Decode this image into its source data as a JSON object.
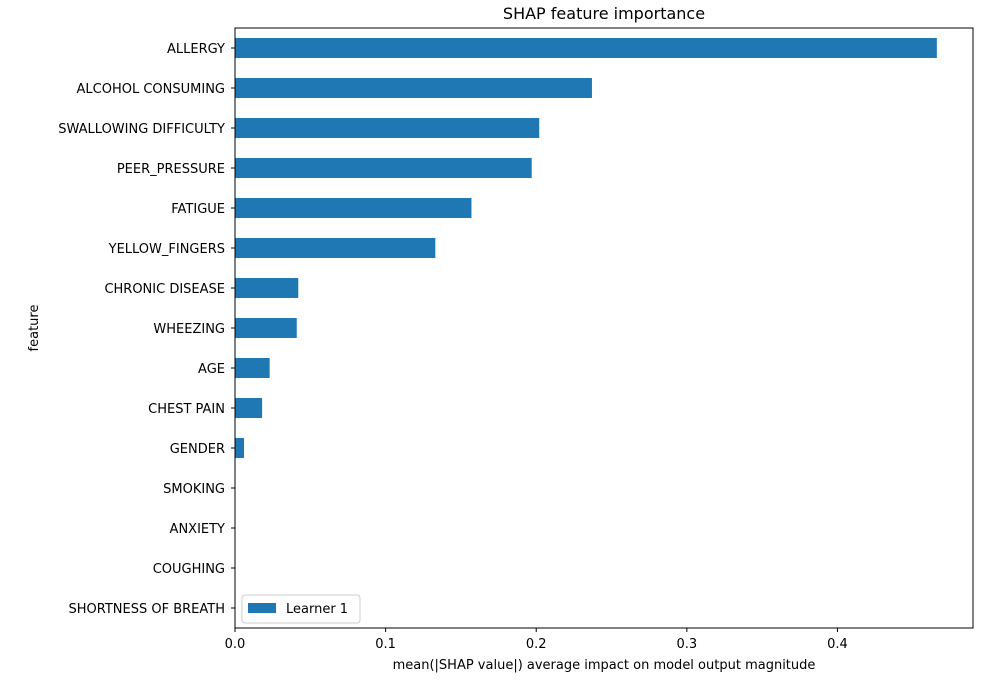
{
  "chart_data": {
    "type": "bar",
    "orientation": "horizontal",
    "title": "SHAP feature importance",
    "xlabel": "mean(|SHAP value|) average impact on model output magnitude",
    "ylabel": "feature",
    "xlim": [
      0,
      0.49
    ],
    "xticks": [
      "0.0",
      "0.1",
      "0.2",
      "0.3",
      "0.4"
    ],
    "xtick_values": [
      0,
      0.1,
      0.2,
      0.3,
      0.4
    ],
    "categories": [
      "ALLERGY ",
      "ALCOHOL CONSUMING",
      "SWALLOWING DIFFICULTY",
      "PEER_PRESSURE",
      "FATIGUE ",
      "YELLOW_FINGERS",
      "CHRONIC DISEASE",
      "WHEEZING",
      "AGE",
      "CHEST PAIN",
      "GENDER",
      "SMOKING",
      "ANXIETY",
      "COUGHING",
      "SHORTNESS OF BREATH"
    ],
    "series": [
      {
        "name": "Learner 1",
        "color": "#1f77b4",
        "values": [
          0.466,
          0.237,
          0.202,
          0.197,
          0.157,
          0.133,
          0.042,
          0.041,
          0.023,
          0.018,
          0.006,
          0.0,
          0.0,
          0.0,
          0.0
        ]
      }
    ],
    "legend": {
      "placement": "lower-left"
    },
    "grid": false
  }
}
